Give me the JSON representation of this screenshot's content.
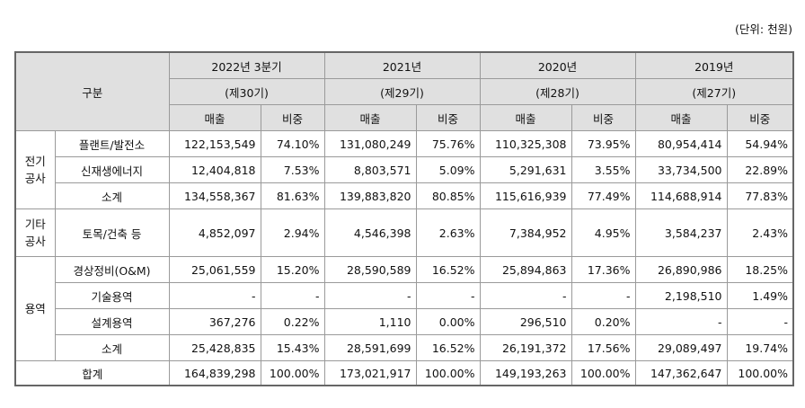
{
  "unit": "(단위: 천원)",
  "header": {
    "category": "구분",
    "periods": [
      {
        "year": "2022년 3분기",
        "term": "(제30기)"
      },
      {
        "year": "2021년",
        "term": "(제29기)"
      },
      {
        "year": "2020년",
        "term": "(제28기)"
      },
      {
        "year": "2019년",
        "term": "(제27기)"
      }
    ],
    "sales": "매출",
    "ratio": "비중"
  },
  "groups": {
    "electric": {
      "line1": "전기",
      "line2": "공사"
    },
    "other": {
      "line1": "기타",
      "line2": "공사"
    },
    "service": {
      "label": "용역"
    }
  },
  "rows": [
    {
      "label": "플랜트/발전소",
      "values": [
        "122,153,549",
        "74.10%",
        "131,080,249",
        "75.76%",
        "110,325,308",
        "73.95%",
        "80,954,414",
        "54.94%"
      ]
    },
    {
      "label": "신재생에너지",
      "values": [
        "12,404,818",
        "7.53%",
        "8,803,571",
        "5.09%",
        "5,291,631",
        "3.55%",
        "33,734,500",
        "22.89%"
      ]
    },
    {
      "label": "소계",
      "values": [
        "134,558,367",
        "81.63%",
        "139,883,820",
        "80.85%",
        "115,616,939",
        "77.49%",
        "114,688,914",
        "77.83%"
      ]
    },
    {
      "label": "토목/건축 등",
      "values": [
        "4,852,097",
        "2.94%",
        "4,546,398",
        "2.63%",
        "7,384,952",
        "4.95%",
        "3,584,237",
        "2.43%"
      ]
    },
    {
      "label": "경상정비(O&M)",
      "values": [
        "25,061,559",
        "15.20%",
        "28,590,589",
        "16.52%",
        "25,894,863",
        "17.36%",
        "26,890,986",
        "18.25%"
      ]
    },
    {
      "label": "기술용역",
      "values": [
        "-",
        "-",
        "-",
        "-",
        "-",
        "-",
        "2,198,510",
        "1.49%"
      ]
    },
    {
      "label": "설계용역",
      "values": [
        "367,276",
        "0.22%",
        "1,110",
        "0.00%",
        "296,510",
        "0.20%",
        "-",
        "-"
      ]
    },
    {
      "label": "소계",
      "values": [
        "25,428,835",
        "15.43%",
        "28,591,699",
        "16.52%",
        "26,191,372",
        "17.56%",
        "29,089,497",
        "19.74%"
      ]
    }
  ],
  "total": {
    "label": "합계",
    "values": [
      "164,839,298",
      "100.00%",
      "173,021,917",
      "100.00%",
      "149,193,263",
      "100.00%",
      "147,362,647",
      "100.00%"
    ]
  }
}
